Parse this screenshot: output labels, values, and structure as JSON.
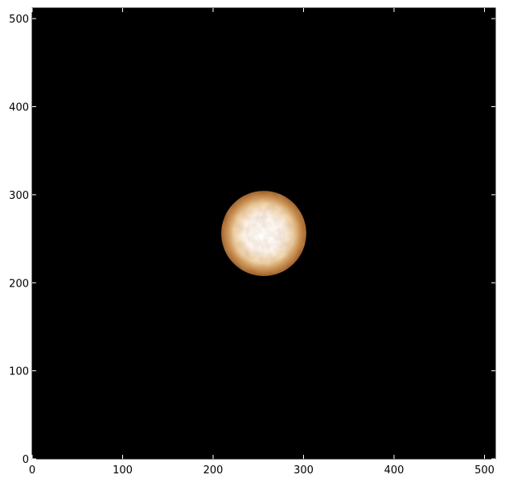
{
  "image": {
    "description_type": "astronomical-intensity-image",
    "colormap": "copper/sepia",
    "background_color": "#000000",
    "disk_color_outer": "#9a5a22",
    "disk_color_inner": "#ffffff"
  },
  "axes": {
    "x_ticks": [
      "0",
      "100",
      "200",
      "300",
      "400",
      "500"
    ],
    "y_ticks": [
      "0",
      "100",
      "200",
      "300",
      "400",
      "500"
    ],
    "x_range": [
      0,
      512
    ],
    "y_range": [
      0,
      512
    ]
  },
  "disk": {
    "center_x": 256,
    "center_y": 256,
    "radius": 47
  }
}
